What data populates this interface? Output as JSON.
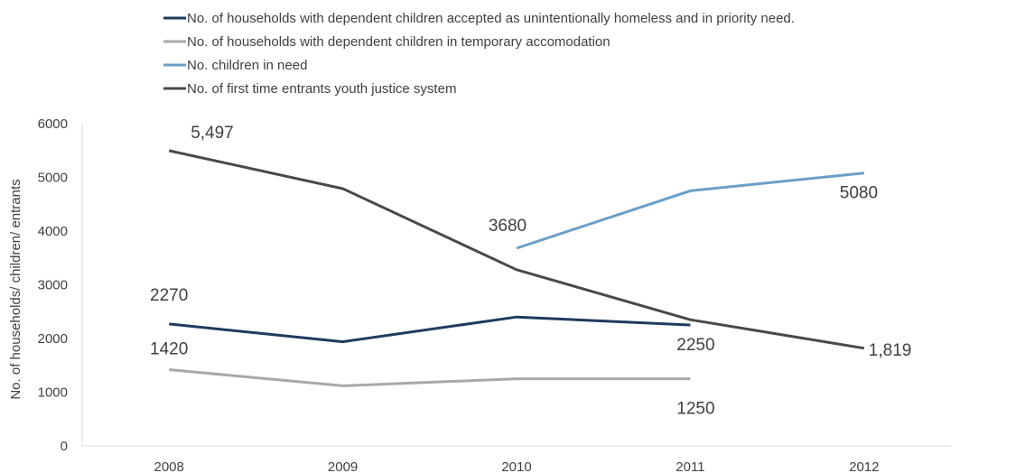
{
  "chart_data": {
    "type": "line",
    "title": "",
    "xlabel": "",
    "ylabel": "No. of households/ children/ entrants",
    "categories": [
      "2008",
      "2009",
      "2010",
      "2011",
      "2012"
    ],
    "ylim": [
      0,
      6000
    ],
    "yticks": [
      "0",
      "1000",
      "2000",
      "3000",
      "4000",
      "5000",
      "6000"
    ],
    "grid": false,
    "legend_position": "top-left",
    "series": [
      {
        "name": "No. of households with dependent children accepted as unintentionally homeless and in priority need.",
        "color": "#1f3b5f",
        "values": [
          2270,
          1940,
          2400,
          2250,
          null
        ],
        "labels": [
          {
            "index": 0,
            "text": "2270"
          },
          {
            "index": 3,
            "text": "2250"
          }
        ]
      },
      {
        "name": "No. of households with dependent children in temporary accomodation",
        "color": "#a6a8ab",
        "values": [
          1420,
          1120,
          1250,
          1250,
          null
        ],
        "labels": [
          {
            "index": 0,
            "text": "1420"
          },
          {
            "index": 3,
            "text": "1250"
          }
        ]
      },
      {
        "name": "No. children in need",
        "color": "#6b9fc7",
        "values": [
          null,
          null,
          3680,
          4750,
          5080
        ],
        "labels": [
          {
            "index": 2,
            "text": "3680"
          },
          {
            "index": 4,
            "text": "5080"
          }
        ]
      },
      {
        "name": "No. of first time entrants youth justice system",
        "color": "#4a4a45",
        "values": [
          5497,
          4790,
          3280,
          2350,
          1819
        ],
        "labels": [
          {
            "index": 0,
            "text": "5,497"
          },
          {
            "index": 4,
            "text": "1,819"
          }
        ]
      }
    ]
  }
}
